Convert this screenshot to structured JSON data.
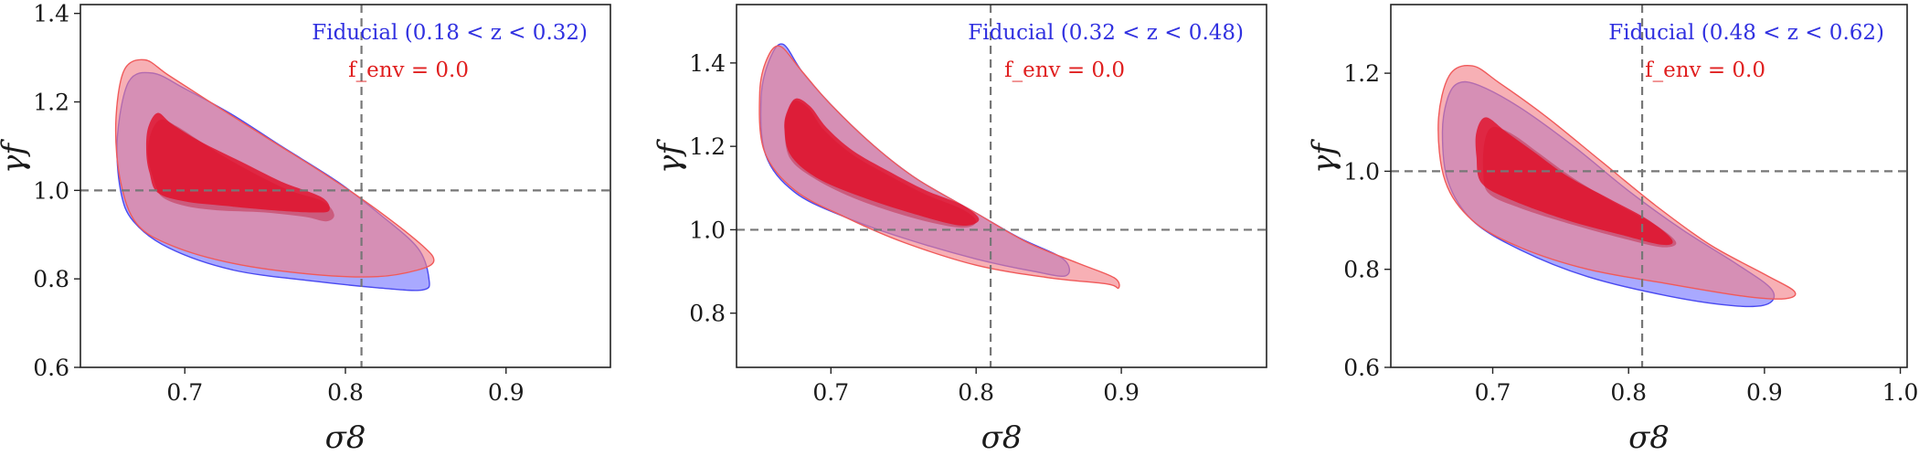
{
  "chart_data": [
    {
      "type": "contour",
      "xlabel": "σ8",
      "ylabel": "γf",
      "xlim": [
        0.635,
        0.965
      ],
      "ylim": [
        0.6,
        1.42
      ],
      "xticks": [
        "0.7",
        "0.8",
        "0.9"
      ],
      "yticks": [
        "0.6",
        "0.8",
        "1.0",
        "1.2",
        "1.4"
      ],
      "fiducial_lines": {
        "x": 0.81,
        "y": 1.0
      },
      "legend": [
        {
          "label": "Fiducial (0.18 < z < 0.32)",
          "color": "#3030e0"
        },
        {
          "label": "f_env = 0.0",
          "color": "#e02020"
        }
      ],
      "series": [
        {
          "name": "Fiducial (0.18 < z < 0.32)",
          "level": "68%",
          "points": [
            [
              0.681,
              1.02
            ],
            [
              0.686,
              0.985
            ],
            [
              0.7,
              0.965
            ],
            [
              0.72,
              0.955
            ],
            [
              0.75,
              0.95
            ],
            [
              0.775,
              0.94
            ],
            [
              0.788,
              0.93
            ],
            [
              0.793,
              0.945
            ],
            [
              0.786,
              0.975
            ],
            [
              0.765,
              1.0
            ],
            [
              0.745,
              1.035
            ],
            [
              0.725,
              1.075
            ],
            [
              0.71,
              1.11
            ],
            [
              0.695,
              1.145
            ],
            [
              0.685,
              1.16
            ],
            [
              0.679,
              1.13
            ],
            [
              0.677,
              1.08
            ]
          ]
        },
        {
          "name": "Fiducial (0.18 < z < 0.32)",
          "level": "95%",
          "points": [
            [
              0.658,
              1.12
            ],
            [
              0.66,
              1.0
            ],
            [
              0.668,
              0.93
            ],
            [
              0.69,
              0.87
            ],
            [
              0.73,
              0.82
            ],
            [
              0.78,
              0.795
            ],
            [
              0.82,
              0.78
            ],
            [
              0.848,
              0.775
            ],
            [
              0.852,
              0.8
            ],
            [
              0.845,
              0.87
            ],
            [
              0.82,
              0.95
            ],
            [
              0.795,
              1.02
            ],
            [
              0.76,
              1.1
            ],
            [
              0.73,
              1.17
            ],
            [
              0.7,
              1.23
            ],
            [
              0.68,
              1.265
            ],
            [
              0.665,
              1.245
            ]
          ]
        },
        {
          "name": "f_env = 0.0",
          "level": "68%",
          "points": [
            [
              0.678,
              1.04
            ],
            [
              0.683,
              0.995
            ],
            [
              0.7,
              0.975
            ],
            [
              0.725,
              0.965
            ],
            [
              0.755,
              0.955
            ],
            [
              0.78,
              0.95
            ],
            [
              0.79,
              0.955
            ],
            [
              0.785,
              0.985
            ],
            [
              0.76,
              1.02
            ],
            [
              0.735,
              1.065
            ],
            [
              0.71,
              1.11
            ],
            [
              0.692,
              1.15
            ],
            [
              0.683,
              1.175
            ],
            [
              0.677,
              1.14
            ],
            [
              0.676,
              1.085
            ]
          ]
        },
        {
          "name": "f_env = 0.0",
          "level": "95%",
          "points": [
            [
              0.657,
              1.15
            ],
            [
              0.66,
              1.02
            ],
            [
              0.67,
              0.925
            ],
            [
              0.692,
              0.875
            ],
            [
              0.73,
              0.835
            ],
            [
              0.78,
              0.81
            ],
            [
              0.82,
              0.805
            ],
            [
              0.845,
              0.82
            ],
            [
              0.855,
              0.84
            ],
            [
              0.848,
              0.875
            ],
            [
              0.82,
              0.955
            ],
            [
              0.79,
              1.03
            ],
            [
              0.755,
              1.11
            ],
            [
              0.72,
              1.19
            ],
            [
              0.69,
              1.26
            ],
            [
              0.675,
              1.295
            ],
            [
              0.662,
              1.27
            ]
          ]
        }
      ]
    },
    {
      "type": "contour",
      "xlabel": "σ8",
      "ylabel": "γf",
      "xlim": [
        0.635,
        1.0
      ],
      "ylim": [
        0.67,
        1.54
      ],
      "xticks": [
        "0.7",
        "0.8",
        "0.9"
      ],
      "yticks": [
        "0.8",
        "1.0",
        "1.2",
        "1.4"
      ],
      "fiducial_lines": {
        "x": 0.81,
        "y": 1.0
      },
      "legend": [
        {
          "label": "Fiducial (0.32 < z < 0.48)",
          "color": "#3030e0"
        },
        {
          "label": "f_env = 0.0",
          "color": "#e02020"
        }
      ],
      "series": [
        {
          "name": "Fiducial (0.32 < z < 0.48)",
          "level": "68%",
          "points": [
            [
              0.668,
              1.24
            ],
            [
              0.672,
              1.17
            ],
            [
              0.69,
              1.12
            ],
            [
              0.72,
              1.07
            ],
            [
              0.76,
              1.025
            ],
            [
              0.79,
              1.005
            ],
            [
              0.8,
              1.02
            ],
            [
              0.79,
              1.05
            ],
            [
              0.765,
              1.085
            ],
            [
              0.74,
              1.13
            ],
            [
              0.715,
              1.18
            ],
            [
              0.695,
              1.24
            ],
            [
              0.685,
              1.29
            ],
            [
              0.675,
              1.31
            ],
            [
              0.67,
              1.28
            ]
          ]
        },
        {
          "name": "Fiducial (0.32 < z < 0.48)",
          "level": "95%",
          "points": [
            [
              0.652,
              1.32
            ],
            [
              0.655,
              1.18
            ],
            [
              0.675,
              1.09
            ],
            [
              0.71,
              1.03
            ],
            [
              0.75,
              0.98
            ],
            [
              0.8,
              0.93
            ],
            [
              0.84,
              0.9
            ],
            [
              0.862,
              0.89
            ],
            [
              0.86,
              0.93
            ],
            [
              0.83,
              0.98
            ],
            [
              0.8,
              1.04
            ],
            [
              0.76,
              1.12
            ],
            [
              0.73,
              1.2
            ],
            [
              0.7,
              1.3
            ],
            [
              0.68,
              1.38
            ],
            [
              0.667,
              1.445
            ],
            [
              0.658,
              1.41
            ]
          ]
        },
        {
          "name": "f_env = 0.0",
          "level": "68%",
          "points": [
            [
              0.668,
              1.245
            ],
            [
              0.672,
              1.18
            ],
            [
              0.69,
              1.125
            ],
            [
              0.72,
              1.08
            ],
            [
              0.76,
              1.035
            ],
            [
              0.79,
              1.01
            ],
            [
              0.802,
              1.025
            ],
            [
              0.79,
              1.06
            ],
            [
              0.765,
              1.095
            ],
            [
              0.74,
              1.14
            ],
            [
              0.715,
              1.19
            ],
            [
              0.697,
              1.245
            ],
            [
              0.686,
              1.295
            ],
            [
              0.676,
              1.315
            ],
            [
              0.67,
              1.285
            ]
          ]
        },
        {
          "name": "f_env = 0.0",
          "level": "95%",
          "points": [
            [
              0.651,
              1.33
            ],
            [
              0.654,
              1.19
            ],
            [
              0.675,
              1.095
            ],
            [
              0.71,
              1.03
            ],
            [
              0.75,
              0.97
            ],
            [
              0.8,
              0.915
            ],
            [
              0.85,
              0.885
            ],
            [
              0.89,
              0.87
            ],
            [
              0.898,
              0.86
            ],
            [
              0.895,
              0.885
            ],
            [
              0.87,
              0.92
            ],
            [
              0.835,
              0.97
            ],
            [
              0.8,
              1.04
            ],
            [
              0.76,
              1.12
            ],
            [
              0.73,
              1.2
            ],
            [
              0.7,
              1.3
            ],
            [
              0.68,
              1.38
            ],
            [
              0.665,
              1.44
            ],
            [
              0.656,
              1.41
            ]
          ]
        }
      ]
    },
    {
      "type": "contour",
      "xlabel": "σ8",
      "ylabel": "γf",
      "xlim": [
        0.625,
        1.005
      ],
      "ylim": [
        0.6,
        1.34
      ],
      "xticks": [
        "0.7",
        "0.8",
        "0.9",
        "1.0"
      ],
      "yticks": [
        "0.6",
        "0.8",
        "1.0",
        "1.2"
      ],
      "fiducial_lines": {
        "x": 0.81,
        "y": 1.0
      },
      "legend": [
        {
          "label": "Fiducial (0.48 < z < 0.62)",
          "color": "#3030e0"
        },
        {
          "label": "f_env = 0.0",
          "color": "#e02020"
        }
      ],
      "series": [
        {
          "name": "Fiducial (0.48 < z < 0.62)",
          "level": "68%",
          "points": [
            [
              0.693,
              1.0
            ],
            [
              0.697,
              0.955
            ],
            [
              0.72,
              0.925
            ],
            [
              0.76,
              0.89
            ],
            [
              0.8,
              0.86
            ],
            [
              0.825,
              0.845
            ],
            [
              0.835,
              0.855
            ],
            [
              0.82,
              0.89
            ],
            [
              0.79,
              0.935
            ],
            [
              0.76,
              0.985
            ],
            [
              0.735,
              1.035
            ],
            [
              0.715,
              1.075
            ],
            [
              0.7,
              1.09
            ],
            [
              0.694,
              1.06
            ]
          ]
        },
        {
          "name": "Fiducial (0.48 < z < 0.62)",
          "level": "95%",
          "points": [
            [
              0.663,
              1.08
            ],
            [
              0.667,
              0.98
            ],
            [
              0.685,
              0.9
            ],
            [
              0.72,
              0.84
            ],
            [
              0.77,
              0.785
            ],
            [
              0.83,
              0.745
            ],
            [
              0.88,
              0.725
            ],
            [
              0.903,
              0.73
            ],
            [
              0.905,
              0.76
            ],
            [
              0.88,
              0.81
            ],
            [
              0.84,
              0.88
            ],
            [
              0.8,
              0.96
            ],
            [
              0.76,
              1.05
            ],
            [
              0.72,
              1.13
            ],
            [
              0.69,
              1.175
            ],
            [
              0.675,
              1.18
            ],
            [
              0.667,
              1.15
            ]
          ]
        },
        {
          "name": "f_env = 0.0",
          "level": "68%",
          "points": [
            [
              0.688,
              1.03
            ],
            [
              0.692,
              0.975
            ],
            [
              0.715,
              0.94
            ],
            [
              0.755,
              0.9
            ],
            [
              0.795,
              0.87
            ],
            [
              0.825,
              0.85
            ],
            [
              0.832,
              0.86
            ],
            [
              0.815,
              0.9
            ],
            [
              0.785,
              0.945
            ],
            [
              0.755,
              0.99
            ],
            [
              0.73,
              1.04
            ],
            [
              0.71,
              1.08
            ],
            [
              0.695,
              1.11
            ],
            [
              0.688,
              1.08
            ]
          ]
        },
        {
          "name": "f_env = 0.0",
          "level": "95%",
          "points": [
            [
              0.66,
              1.1
            ],
            [
              0.665,
              0.98
            ],
            [
              0.685,
              0.9
            ],
            [
              0.72,
              0.845
            ],
            [
              0.77,
              0.8
            ],
            [
              0.83,
              0.77
            ],
            [
              0.885,
              0.745
            ],
            [
              0.915,
              0.74
            ],
            [
              0.922,
              0.755
            ],
            [
              0.9,
              0.79
            ],
            [
              0.86,
              0.85
            ],
            [
              0.82,
              0.93
            ],
            [
              0.78,
              1.02
            ],
            [
              0.74,
              1.11
            ],
            [
              0.705,
              1.18
            ],
            [
              0.685,
              1.215
            ],
            [
              0.668,
              1.195
            ]
          ]
        }
      ]
    }
  ]
}
